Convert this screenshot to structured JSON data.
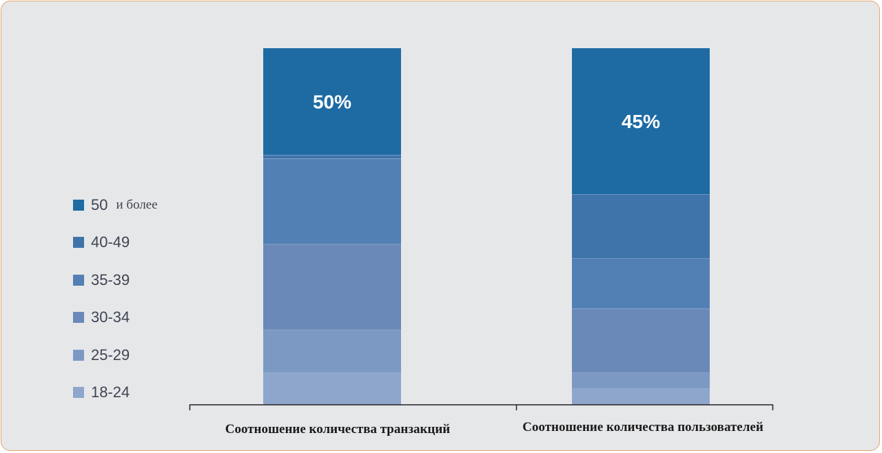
{
  "chart_data": {
    "type": "bar",
    "stacked": true,
    "normalized": true,
    "categories": [
      "Соотношение количества транзакций",
      "Соотношение количества пользователей"
    ],
    "series": [
      {
        "name": "18-24",
        "color": "#8ea6cb",
        "values": [
          9,
          4.5
        ]
      },
      {
        "name": "25-29",
        "color": "#7c99c4",
        "values": [
          12,
          4.5
        ]
      },
      {
        "name": "30-34",
        "color": "#6a89b8",
        "values": [
          24,
          18
        ]
      },
      {
        "name": "35-39",
        "color": "#5280b4",
        "values": [
          24,
          14
        ]
      },
      {
        "name": "40-49",
        "color": "#3f74aa",
        "values": [
          1,
          18
        ]
      },
      {
        "name": "50 и более",
        "color": "#1e6ba3",
        "values": [
          30,
          41
        ]
      }
    ],
    "data_labels": [
      "50%",
      "45%"
    ],
    "ylim": [
      0,
      100
    ],
    "legend_position": "left",
    "grid": false
  },
  "legend": [
    {
      "label": "50",
      "suffix": "и более",
      "color": "#1e6ba3"
    },
    {
      "label": "40-49",
      "suffix": "",
      "color": "#3f74aa"
    },
    {
      "label": "35-39",
      "suffix": "",
      "color": "#5280b4"
    },
    {
      "label": "30-34",
      "suffix": "",
      "color": "#6a89b8"
    },
    {
      "label": "25-29",
      "suffix": "",
      "color": "#7c99c4"
    },
    {
      "label": "18-24",
      "suffix": "",
      "color": "#8ea6cb"
    }
  ]
}
